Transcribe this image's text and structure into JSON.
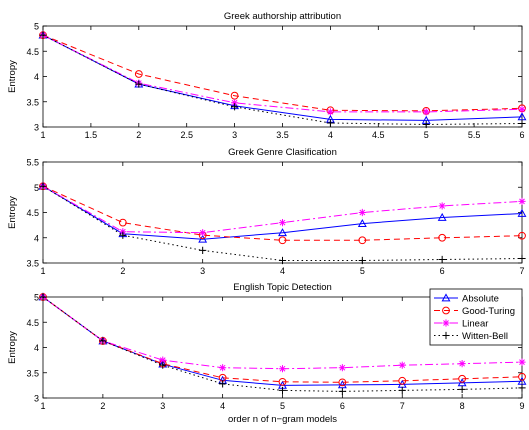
{
  "chart_data": [
    {
      "type": "line",
      "title": "Greek authorship attribution",
      "xlabel": "",
      "ylabel": "Entropy",
      "xlim": [
        1,
        6
      ],
      "ylim": [
        3,
        5
      ],
      "xticks": [
        1,
        1.5,
        2,
        2.5,
        3,
        3.5,
        4,
        4.5,
        5,
        5.5,
        6
      ],
      "yticks": [
        3,
        3.5,
        4,
        4.5,
        5
      ],
      "x": [
        1,
        2,
        3,
        4,
        5,
        6
      ],
      "series": [
        {
          "name": "Absolute",
          "values": [
            4.82,
            3.85,
            3.42,
            3.15,
            3.13,
            3.2
          ]
        },
        {
          "name": "Good-Turing",
          "values": [
            4.82,
            4.05,
            3.62,
            3.33,
            3.32,
            3.37
          ]
        },
        {
          "name": "Linear",
          "values": [
            4.82,
            3.87,
            3.48,
            3.3,
            3.3,
            3.35
          ]
        },
        {
          "name": "Witten-Bell",
          "values": [
            4.82,
            3.85,
            3.4,
            3.08,
            3.05,
            3.07
          ]
        }
      ]
    },
    {
      "type": "line",
      "title": "Greek Genre Clasification",
      "xlabel": "",
      "ylabel": "Entropy",
      "xlim": [
        1,
        7
      ],
      "ylim": [
        3.5,
        5.5
      ],
      "xticks": [
        1,
        2,
        3,
        4,
        5,
        6,
        7
      ],
      "yticks": [
        3.5,
        4,
        4.5,
        5,
        5.5
      ],
      "x": [
        1,
        2,
        3,
        4,
        5,
        6,
        7
      ],
      "series": [
        {
          "name": "Absolute",
          "values": [
            5.02,
            4.08,
            3.97,
            4.1,
            4.28,
            4.4,
            4.48
          ]
        },
        {
          "name": "Good-Turing",
          "values": [
            5.02,
            4.3,
            4.05,
            3.95,
            3.95,
            4.0,
            4.04
          ]
        },
        {
          "name": "Linear",
          "values": [
            5.02,
            4.12,
            4.1,
            4.3,
            4.5,
            4.63,
            4.72
          ]
        },
        {
          "name": "Witten-Bell",
          "values": [
            5.02,
            4.05,
            3.75,
            3.55,
            3.55,
            3.57,
            3.59
          ]
        }
      ]
    },
    {
      "type": "line",
      "title": "English Topic Detection",
      "xlabel": "order n of n−gram models",
      "ylabel": "Entropy",
      "xlim": [
        1,
        9
      ],
      "ylim": [
        3,
        5
      ],
      "xticks": [
        1,
        2,
        3,
        4,
        5,
        6,
        7,
        8,
        9
      ],
      "yticks": [
        3,
        3.5,
        4,
        4.5,
        5
      ],
      "x": [
        1,
        2,
        3,
        4,
        5,
        6,
        7,
        8,
        9
      ],
      "legend": "top-right",
      "series": [
        {
          "name": "Absolute",
          "values": [
            5.0,
            4.13,
            3.67,
            3.35,
            3.25,
            3.26,
            3.27,
            3.3,
            3.33
          ]
        },
        {
          "name": "Good-Turing",
          "values": [
            5.0,
            4.13,
            3.68,
            3.4,
            3.32,
            3.31,
            3.34,
            3.38,
            3.42
          ]
        },
        {
          "name": "Linear",
          "values": [
            5.0,
            4.13,
            3.75,
            3.6,
            3.58,
            3.6,
            3.65,
            3.68,
            3.71
          ]
        },
        {
          "name": "Witten-Bell",
          "values": [
            5.0,
            4.13,
            3.65,
            3.28,
            3.15,
            3.13,
            3.15,
            3.17,
            3.2
          ]
        }
      ]
    }
  ],
  "styles": [
    {
      "color": "#0000ff",
      "dash": "",
      "marker": "triangle"
    },
    {
      "color": "#ff0000",
      "dash": "6,4",
      "marker": "circle"
    },
    {
      "color": "#ff00ff",
      "dash": "8,3,2,3",
      "marker": "star"
    },
    {
      "color": "#000000",
      "dash": "1.5,3",
      "marker": "plus"
    }
  ]
}
